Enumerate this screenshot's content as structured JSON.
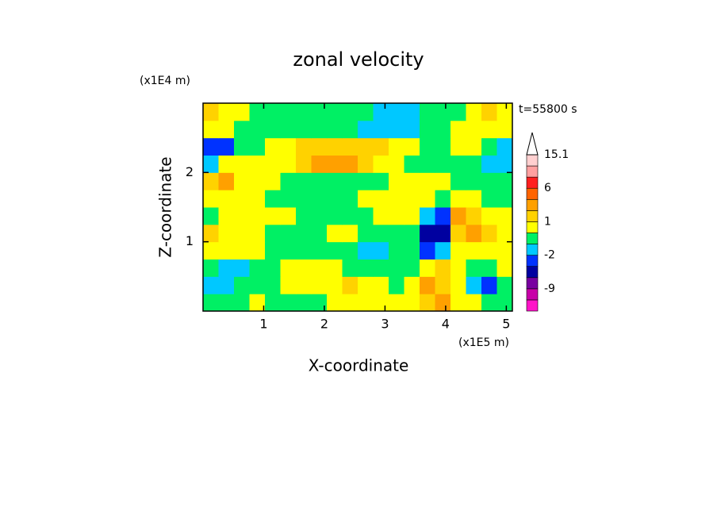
{
  "chart_data": {
    "type": "contour",
    "title": "zonal velocity",
    "subtitle": "t=55800 s",
    "x_label": "X-coordinate",
    "y_label": "Z-coordinate",
    "x_unit": "(x1E5 m)",
    "y_unit": "(x1E4 m)",
    "xlim": [
      0,
      5.1
    ],
    "ylim": [
      0,
      3
    ],
    "xticks": [
      1,
      2,
      3,
      4,
      5
    ],
    "yticks": [
      1,
      2
    ],
    "x": [
      0,
      0.255,
      0.51,
      0.765,
      1.02,
      1.275,
      1.53,
      1.785,
      2.04,
      2.295,
      2.55,
      2.805,
      3.06,
      3.315,
      3.57,
      3.825,
      4.08,
      4.335,
      4.59,
      4.845,
      5.1
    ],
    "z": [
      0,
      0.25,
      0.5,
      0.75,
      1,
      1.25,
      1.5,
      1.75,
      2,
      2.25,
      2.5,
      2.75,
      3
    ],
    "values": [
      [
        -0.5,
        -0.5,
        -0.5,
        0.5,
        -0.5,
        -0.5,
        -0.5,
        -0.5,
        0.5,
        0.5,
        0.5,
        0.5,
        0.5,
        0.5,
        1.5,
        3,
        0.5,
        0.5,
        -0.5,
        -0.5
      ],
      [
        -1.5,
        -1.5,
        -0.5,
        -0.5,
        -0.5,
        0.5,
        0.5,
        0.5,
        0.5,
        1.5,
        0.5,
        0.5,
        -0.5,
        0.5,
        3,
        1.5,
        0.5,
        -1.5,
        -3,
        -0.5
      ],
      [
        -0.5,
        -1.5,
        -1.5,
        -0.5,
        -0.5,
        0.5,
        0.5,
        0.5,
        0.5,
        -0.5,
        -0.5,
        -0.5,
        -0.5,
        -0.5,
        0.5,
        1.5,
        0.5,
        -0.5,
        -0.5,
        0.5
      ],
      [
        0.5,
        0.5,
        0.5,
        0.5,
        -0.5,
        -0.5,
        -0.5,
        -0.5,
        -0.5,
        -0.5,
        -1.5,
        -1.5,
        -0.5,
        -0.5,
        -3,
        -1.5,
        0.5,
        0.5,
        0.5,
        0.5
      ],
      [
        1.5,
        0.5,
        0.5,
        0.5,
        -0.5,
        -0.5,
        -0.5,
        -0.5,
        0.5,
        0.5,
        -0.5,
        -0.5,
        -0.5,
        -0.5,
        -5,
        -5,
        1.5,
        3,
        1.5,
        0.5
      ],
      [
        -0.5,
        0.5,
        0.5,
        0.5,
        0.5,
        0.5,
        -0.5,
        -0.5,
        -0.5,
        -0.5,
        -0.5,
        0.5,
        0.5,
        0.5,
        -1.5,
        -3,
        3,
        1.5,
        0.5,
        0.5
      ],
      [
        0.5,
        0.5,
        0.5,
        0.5,
        -0.5,
        -0.5,
        -0.5,
        -0.5,
        -0.5,
        -0.5,
        0.5,
        0.5,
        0.5,
        0.5,
        0.5,
        -0.5,
        0.5,
        0.5,
        -0.5,
        -0.5
      ],
      [
        1.5,
        3,
        0.5,
        0.5,
        0.5,
        -0.5,
        -0.5,
        -0.5,
        -0.5,
        -0.5,
        -0.5,
        -0.5,
        0.5,
        0.5,
        0.5,
        0.5,
        -0.5,
        -0.5,
        -0.5,
        -0.5
      ],
      [
        -1.5,
        0.5,
        0.5,
        0.5,
        0.5,
        0.5,
        1.5,
        3,
        3,
        3,
        1.5,
        0.5,
        0.5,
        -0.5,
        -0.5,
        -0.5,
        -0.5,
        -0.5,
        -1.5,
        -1.5
      ],
      [
        -3,
        -3,
        -0.5,
        -0.5,
        0.5,
        0.5,
        1.5,
        1.5,
        1.5,
        1.5,
        1.5,
        1.5,
        0.5,
        0.5,
        -0.5,
        -0.5,
        0.5,
        0.5,
        -0.5,
        -1.5
      ],
      [
        0.5,
        0.5,
        -0.5,
        -0.5,
        -0.5,
        -0.5,
        -0.5,
        -0.5,
        -0.5,
        -0.5,
        -1.5,
        -1.5,
        -1.5,
        -1.5,
        -0.5,
        -0.5,
        0.5,
        0.5,
        0.5,
        0.5
      ],
      [
        1.5,
        0.5,
        0.5,
        -0.5,
        -0.5,
        -0.5,
        -0.5,
        -0.5,
        -0.5,
        -0.5,
        -0.5,
        -1.5,
        -1.5,
        -1.5,
        -0.5,
        -0.5,
        -0.5,
        0.5,
        1.5,
        0.5
      ]
    ],
    "colorbar": {
      "levels": [
        -15,
        -12,
        -9,
        -6,
        -4,
        -2,
        -1,
        0,
        1,
        2,
        4,
        6,
        9,
        12,
        15.1
      ],
      "colors": [
        "#ff14c8",
        "#c800a8",
        "#7800a0",
        "#0000a0",
        "#0032ff",
        "#00c8ff",
        "#00f064",
        "#ffff00",
        "#ffd200",
        "#ffa000",
        "#ff6400",
        "#ff2020",
        "#ffa0a0",
        "#ffd0d0"
      ],
      "extend_color": "#ffffff",
      "ticks": [
        15.1,
        6,
        1,
        -2,
        -9
      ]
    }
  }
}
